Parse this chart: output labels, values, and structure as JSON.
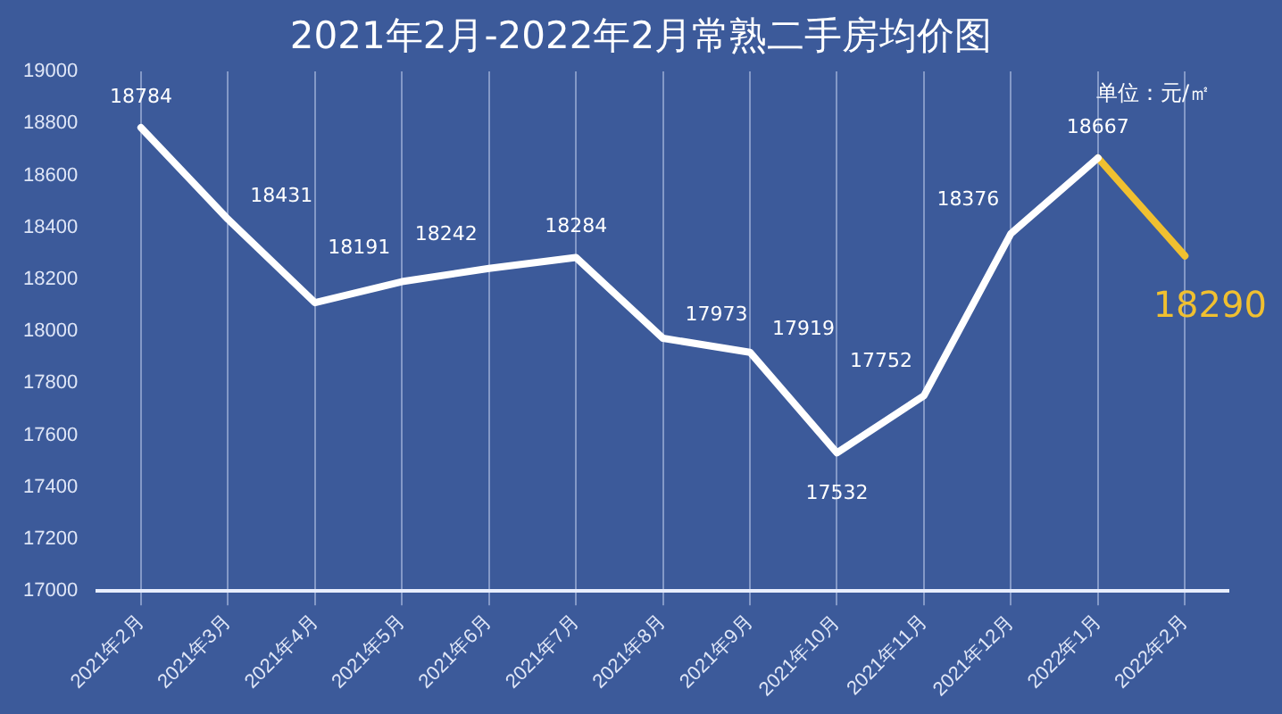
{
  "chart_data": {
    "type": "line",
    "title": "2021年2月-2022年2月常熟二手房均价图",
    "annotations": [
      "单位：元/㎡"
    ],
    "categories": [
      "2021年2月",
      "2021年3月",
      "2021年4月",
      "2021年5月",
      "2021年6月",
      "2021年7月",
      "2021年8月",
      "2021年9月",
      "2021年10月",
      "2021年11月",
      "2021年12月",
      "2022年1月",
      "2022年2月"
    ],
    "series": [
      {
        "color": "#ffffff",
        "values": [
          18784,
          18431,
          18110,
          18191,
          18242,
          18284,
          17973,
          17919,
          17532,
          17752,
          18376,
          18667,
          null
        ],
        "value_labels": [
          "18784",
          "18431",
          null,
          "18191",
          "18242",
          "18284",
          "17973",
          "17919",
          "17532",
          "17752",
          "18376",
          "18667",
          null
        ]
      },
      {
        "color": "#f0c030",
        "values": [
          null,
          null,
          null,
          null,
          null,
          null,
          null,
          null,
          null,
          null,
          null,
          18667,
          18290
        ],
        "value_labels": [
          null,
          null,
          null,
          null,
          null,
          null,
          null,
          null,
          null,
          null,
          null,
          null,
          "18290"
        ]
      }
    ],
    "ylim": [
      17000,
      19000
    ],
    "yticks": [
      17000,
      17200,
      17400,
      17600,
      17800,
      18000,
      18200,
      18400,
      18600,
      18800,
      19000
    ],
    "grid": "x",
    "marker": "none",
    "line_style": "solid"
  }
}
